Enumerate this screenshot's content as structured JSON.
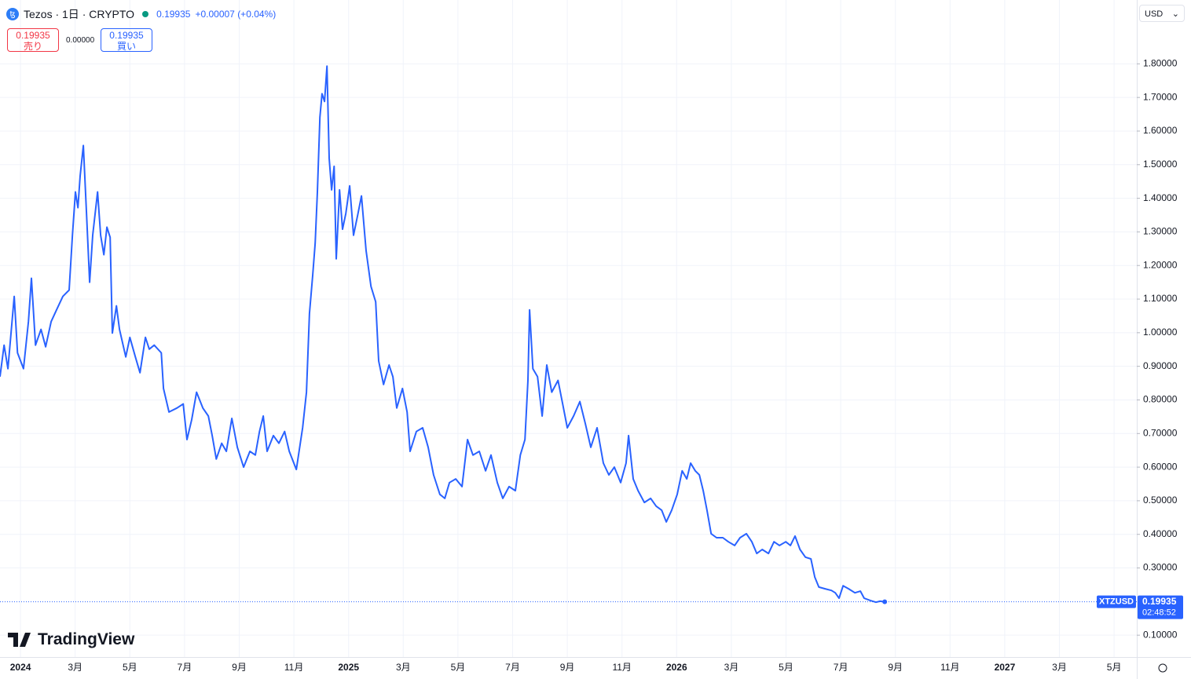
{
  "header": {
    "title": "Tezos · 1日 · CRYPTO",
    "price": "0.19935",
    "change": "+0.00007 (+0.04%)",
    "sell": {
      "price": "0.19935",
      "label": "売り"
    },
    "spread": "0.00000",
    "buy": {
      "price": "0.19935",
      "label": "買い"
    },
    "currency": "USD",
    "brand": "TradingView"
  },
  "chart_data": {
    "type": "line",
    "color": "#2962ff",
    "grid": true,
    "price_line": {
      "symbol": "XTZUSD",
      "value": 0.19935,
      "value_label": "0.19935",
      "countdown": "02:48:52"
    },
    "xlim": [
      -0.75,
      40.83
    ],
    "ylim": [
      0.035,
      1.99
    ],
    "xticks": [
      {
        "value": 0,
        "label": "2024"
      },
      {
        "value": 2,
        "label": "3月"
      },
      {
        "value": 4,
        "label": "5月"
      },
      {
        "value": 6,
        "label": "7月"
      },
      {
        "value": 8,
        "label": "9月"
      },
      {
        "value": 10,
        "label": "11月"
      },
      {
        "value": 12,
        "label": "2025"
      },
      {
        "value": 14,
        "label": "3月"
      },
      {
        "value": 16,
        "label": "5月"
      },
      {
        "value": 18,
        "label": "7月"
      },
      {
        "value": 20,
        "label": "9月"
      },
      {
        "value": 22,
        "label": "11月"
      },
      {
        "value": 24,
        "label": "2026"
      },
      {
        "value": 26,
        "label": "3月"
      },
      {
        "value": 28,
        "label": "5月"
      },
      {
        "value": 30,
        "label": "7月"
      },
      {
        "value": 32,
        "label": "9月"
      },
      {
        "value": 34,
        "label": "11月"
      },
      {
        "value": 36,
        "label": "2027"
      },
      {
        "value": 38,
        "label": "3月"
      },
      {
        "value": 40,
        "label": "5月"
      }
    ],
    "yticks": [
      {
        "value": 0.1,
        "label": "0.10000"
      },
      {
        "value": 0.3,
        "label": "0.30000"
      },
      {
        "value": 0.4,
        "label": "0.40000"
      },
      {
        "value": 0.5,
        "label": "0.50000"
      },
      {
        "value": 0.6,
        "label": "0.60000"
      },
      {
        "value": 0.7,
        "label": "0.70000"
      },
      {
        "value": 0.8,
        "label": "0.80000"
      },
      {
        "value": 0.9,
        "label": "0.90000"
      },
      {
        "value": 1.0,
        "label": "1.00000"
      },
      {
        "value": 1.1,
        "label": "1.10000"
      },
      {
        "value": 1.2,
        "label": "1.20000"
      },
      {
        "value": 1.3,
        "label": "1.30000"
      },
      {
        "value": 1.4,
        "label": "1.40000"
      },
      {
        "value": 1.5,
        "label": "1.50000"
      },
      {
        "value": 1.6,
        "label": "1.60000"
      },
      {
        "value": 1.7,
        "label": "1.70000"
      },
      {
        "value": 1.8,
        "label": "1.80000"
      }
    ],
    "x": [
      -0.75,
      -0.6,
      -0.46,
      -0.23,
      -0.11,
      0.11,
      0.29,
      0.4,
      0.55,
      0.75,
      0.92,
      1.12,
      1.32,
      1.55,
      1.78,
      1.9,
      2.01,
      2.1,
      2.18,
      2.3,
      2.41,
      2.53,
      2.64,
      2.82,
      2.93,
      3.05,
      3.16,
      3.28,
      3.36,
      3.51,
      3.62,
      3.85,
      4.0,
      4.2,
      4.37,
      4.57,
      4.71,
      4.89,
      5.15,
      5.23,
      5.43,
      5.72,
      5.95,
      6.09,
      6.26,
      6.44,
      6.67,
      6.87,
      7.01,
      7.16,
      7.36,
      7.53,
      7.73,
      7.93,
      8.16,
      8.39,
      8.59,
      8.74,
      8.88,
      9.02,
      9.25,
      9.45,
      9.66,
      9.83,
      10.09,
      10.32,
      10.46,
      10.57,
      10.69,
      10.78,
      10.86,
      10.95,
      11.03,
      11.12,
      11.21,
      11.29,
      11.38,
      11.47,
      11.55,
      11.67,
      11.78,
      11.9,
      12.04,
      12.18,
      12.33,
      12.47,
      12.64,
      12.82,
      12.99,
      13.1,
      13.28,
      13.48,
      13.62,
      13.76,
      13.97,
      14.14,
      14.25,
      14.48,
      14.71,
      14.91,
      15.11,
      15.34,
      15.52,
      15.69,
      15.92,
      16.15,
      16.35,
      16.55,
      16.78,
      17.01,
      17.21,
      17.44,
      17.64,
      17.87,
      18.1,
      18.28,
      18.45,
      18.56,
      18.62,
      18.74,
      18.91,
      19.08,
      19.25,
      19.43,
      19.66,
      19.83,
      20.0,
      20.23,
      20.46,
      20.66,
      20.86,
      21.09,
      21.32,
      21.52,
      21.72,
      21.95,
      22.15,
      22.24,
      22.41,
      22.59,
      22.82,
      23.05,
      23.25,
      23.45,
      23.62,
      23.82,
      24.02,
      24.2,
      24.37,
      24.51,
      24.68,
      24.83,
      24.97,
      25.11,
      25.26,
      25.46,
      25.69,
      25.89,
      26.12,
      26.32,
      26.55,
      26.75,
      26.93,
      27.13,
      27.36,
      27.56,
      27.76,
      27.99,
      28.16,
      28.33,
      28.51,
      28.71,
      28.91,
      29.05,
      29.2,
      29.43,
      29.66,
      29.8,
      29.94,
      30.09,
      30.29,
      30.52,
      30.72,
      30.86,
      31.09,
      31.29,
      31.44,
      31.61
    ],
    "values": [
      0.869,
      0.963,
      0.893,
      1.108,
      0.94,
      0.893,
      1.033,
      1.162,
      0.963,
      1.01,
      0.958,
      1.033,
      1.068,
      1.108,
      1.127,
      1.29,
      1.419,
      1.372,
      1.466,
      1.557,
      1.361,
      1.15,
      1.29,
      1.419,
      1.29,
      1.232,
      1.314,
      1.284,
      0.999,
      1.08,
      1.01,
      0.928,
      0.986,
      0.928,
      0.881,
      0.986,
      0.951,
      0.963,
      0.94,
      0.834,
      0.764,
      0.776,
      0.788,
      0.682,
      0.741,
      0.823,
      0.776,
      0.752,
      0.694,
      0.624,
      0.671,
      0.647,
      0.745,
      0.659,
      0.6,
      0.647,
      0.636,
      0.706,
      0.752,
      0.647,
      0.694,
      0.671,
      0.706,
      0.647,
      0.593,
      0.717,
      0.823,
      1.057,
      1.173,
      1.267,
      1.419,
      1.641,
      1.711,
      1.688,
      1.793,
      1.519,
      1.425,
      1.495,
      1.22,
      1.425,
      1.308,
      1.355,
      1.437,
      1.29,
      1.349,
      1.407,
      1.244,
      1.138,
      1.092,
      0.916,
      0.846,
      0.904,
      0.869,
      0.776,
      0.834,
      0.764,
      0.647,
      0.706,
      0.717,
      0.659,
      0.577,
      0.519,
      0.507,
      0.554,
      0.565,
      0.542,
      0.682,
      0.636,
      0.647,
      0.589,
      0.636,
      0.554,
      0.507,
      0.542,
      0.53,
      0.636,
      0.682,
      0.858,
      1.068,
      0.893,
      0.869,
      0.752,
      0.904,
      0.823,
      0.858,
      0.788,
      0.717,
      0.752,
      0.795,
      0.729,
      0.659,
      0.717,
      0.612,
      0.577,
      0.6,
      0.554,
      0.612,
      0.694,
      0.565,
      0.53,
      0.495,
      0.507,
      0.484,
      0.472,
      0.437,
      0.472,
      0.519,
      0.589,
      0.565,
      0.612,
      0.589,
      0.577,
      0.53,
      0.472,
      0.402,
      0.39,
      0.39,
      0.378,
      0.367,
      0.39,
      0.402,
      0.378,
      0.343,
      0.355,
      0.343,
      0.378,
      0.367,
      0.378,
      0.367,
      0.395,
      0.355,
      0.332,
      0.327,
      0.273,
      0.243,
      0.238,
      0.233,
      0.226,
      0.21,
      0.247,
      0.238,
      0.226,
      0.231,
      0.21,
      0.203,
      0.198,
      0.201,
      0.19935
    ]
  }
}
